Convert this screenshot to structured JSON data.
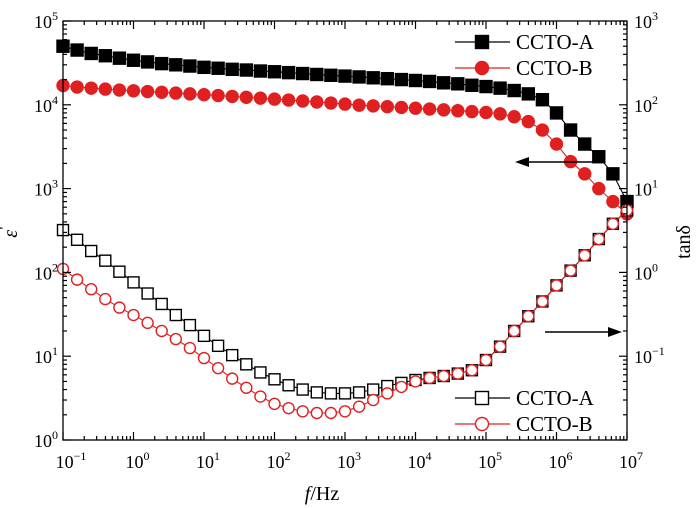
{
  "chart_data": {
    "type": "scatter",
    "x_scale": "log",
    "y_left_scale": "log",
    "y_right_scale": "log",
    "xlim": [
      0.1,
      10000000
    ],
    "ylim_left": [
      1,
      100000
    ],
    "ylim_right": [
      0.01,
      1000
    ],
    "xlabel": {
      "italic": "f",
      "rest": "/Hz"
    },
    "ylabel_left": {
      "main": "ε",
      "prime": "'"
    },
    "ylabel_right": "tanδ",
    "x_ticks": [
      {
        "value": 0.1,
        "base": "10",
        "exp": "−1"
      },
      {
        "value": 1,
        "base": "10",
        "exp": "0"
      },
      {
        "value": 10,
        "base": "10",
        "exp": "1"
      },
      {
        "value": 100,
        "base": "10",
        "exp": "2"
      },
      {
        "value": 1000,
        "base": "10",
        "exp": "3"
      },
      {
        "value": 10000,
        "base": "10",
        "exp": "4"
      },
      {
        "value": 100000,
        "base": "10",
        "exp": "5"
      },
      {
        "value": 1000000,
        "base": "10",
        "exp": "6"
      },
      {
        "value": 10000000,
        "base": "10",
        "exp": "7"
      }
    ],
    "y_left_ticks": [
      {
        "value": 1,
        "base": "10",
        "exp": "0"
      },
      {
        "value": 10,
        "base": "10",
        "exp": "1"
      },
      {
        "value": 100,
        "base": "10",
        "exp": "2"
      },
      {
        "value": 1000,
        "base": "10",
        "exp": "3"
      },
      {
        "value": 10000,
        "base": "10",
        "exp": "4"
      },
      {
        "value": 100000,
        "base": "10",
        "exp": "5"
      }
    ],
    "y_right_ticks": [
      {
        "value": 0.1,
        "base": "10",
        "exp": "−1"
      },
      {
        "value": 1,
        "base": "10",
        "exp": "0"
      },
      {
        "value": 10,
        "base": "10",
        "exp": "1"
      },
      {
        "value": 100,
        "base": "10",
        "exp": "2"
      },
      {
        "value": 1000,
        "base": "10",
        "exp": "3"
      }
    ],
    "legend_top": {
      "placement": "top-right",
      "entries": [
        {
          "label": "CCTO-A",
          "marker": "square",
          "filled": true,
          "color": "#000000"
        },
        {
          "label": "CCTO-B",
          "marker": "circle",
          "filled": true,
          "color": "#e02020"
        }
      ]
    },
    "legend_bottom": {
      "placement": "bottom-right",
      "entries": [
        {
          "label": "CCTO-A",
          "marker": "square",
          "filled": false,
          "color": "#000000"
        },
        {
          "label": "CCTO-B",
          "marker": "circle",
          "filled": false,
          "color": "#e02020"
        }
      ]
    },
    "annotations": [
      {
        "type": "arrow",
        "points_to": "left-axis",
        "at_x": 6000000,
        "at_y_left": 2400
      },
      {
        "type": "arrow",
        "points_to": "right-axis",
        "at_x": 700000,
        "at_y_right": 0.5
      }
    ],
    "series": [
      {
        "name": "CCTO-A",
        "axis": "left",
        "marker": "square",
        "filled": true,
        "color": "#000000",
        "log_x": [
          -1,
          -0.8,
          -0.6,
          -0.4,
          -0.2,
          0,
          0.2,
          0.4,
          0.6,
          0.8,
          1,
          1.2,
          1.4,
          1.6,
          1.8,
          2,
          2.2,
          2.4,
          2.6,
          2.8,
          3,
          3.2,
          3.4,
          3.6,
          3.8,
          4,
          4.2,
          4.4,
          4.6,
          4.8,
          5,
          5.2,
          5.4,
          5.6,
          5.8,
          6,
          6.2,
          6.4,
          6.6,
          6.8,
          7
        ],
        "y": [
          50000,
          45000,
          41000,
          38500,
          36000,
          34000,
          32500,
          31000,
          30000,
          29000,
          28000,
          27300,
          26500,
          26000,
          25300,
          24800,
          24200,
          23600,
          23000,
          22500,
          22000,
          21500,
          21000,
          20500,
          20000,
          19500,
          19000,
          18300,
          17800,
          17100,
          16500,
          15800,
          14800,
          13500,
          11500,
          8000,
          5000,
          3400,
          2400,
          1500,
          700
        ]
      },
      {
        "name": "CCTO-B",
        "axis": "left",
        "marker": "circle",
        "filled": true,
        "color": "#e02020",
        "log_x": [
          -1,
          -0.8,
          -0.6,
          -0.4,
          -0.2,
          0,
          0.2,
          0.4,
          0.6,
          0.8,
          1,
          1.2,
          1.4,
          1.6,
          1.8,
          2,
          2.2,
          2.4,
          2.6,
          2.8,
          3,
          3.2,
          3.4,
          3.6,
          3.8,
          4,
          4.2,
          4.4,
          4.6,
          4.8,
          5,
          5.2,
          5.4,
          5.6,
          5.8,
          6,
          6.2,
          6.4,
          6.6,
          6.8,
          7
        ],
        "y": [
          17000,
          16300,
          15800,
          15400,
          15000,
          14700,
          14400,
          14100,
          13800,
          13500,
          13200,
          12900,
          12600,
          12300,
          12000,
          11700,
          11400,
          11100,
          10800,
          10500,
          10200,
          9900,
          9700,
          9500,
          9300,
          9100,
          8900,
          8700,
          8500,
          8300,
          8100,
          7800,
          7200,
          6300,
          5000,
          3400,
          2100,
          1500,
          1000,
          700,
          500
        ]
      },
      {
        "name": "CCTO-A",
        "axis": "right",
        "marker": "square",
        "filled": false,
        "color": "#000000",
        "log_x": [
          -1,
          -0.8,
          -0.6,
          -0.4,
          -0.2,
          0,
          0.2,
          0.4,
          0.6,
          0.8,
          1,
          1.2,
          1.4,
          1.6,
          1.8,
          2,
          2.2,
          2.4,
          2.6,
          2.8,
          3,
          3.2,
          3.4,
          3.6,
          3.8,
          4,
          4.2,
          4.4,
          4.6,
          4.8,
          5,
          5.2,
          5.4,
          5.6,
          5.8,
          6,
          6.2,
          6.4,
          6.6,
          6.8,
          7
        ],
        "y": [
          3.2,
          2.45,
          1.8,
          1.38,
          1.02,
          0.76,
          0.56,
          0.42,
          0.31,
          0.235,
          0.175,
          0.133,
          0.103,
          0.08,
          0.064,
          0.053,
          0.045,
          0.04,
          0.037,
          0.036,
          0.036,
          0.037,
          0.04,
          0.044,
          0.048,
          0.052,
          0.055,
          0.058,
          0.062,
          0.068,
          0.09,
          0.13,
          0.2,
          0.3,
          0.45,
          0.7,
          1.05,
          1.6,
          2.5,
          3.8,
          5.5
        ]
      },
      {
        "name": "CCTO-B",
        "axis": "right",
        "marker": "circle",
        "filled": false,
        "color": "#e02020",
        "log_x": [
          -1,
          -0.8,
          -0.6,
          -0.4,
          -0.2,
          0,
          0.2,
          0.4,
          0.6,
          0.8,
          1,
          1.2,
          1.4,
          1.6,
          1.8,
          2,
          2.2,
          2.4,
          2.6,
          2.8,
          3,
          3.2,
          3.4,
          3.6,
          3.8,
          4,
          4.2,
          4.4,
          4.6,
          4.8,
          5,
          5.2,
          5.4,
          5.6,
          5.8,
          6,
          6.2,
          6.4,
          6.6,
          6.8,
          7
        ],
        "y": [
          1.1,
          0.82,
          0.63,
          0.48,
          0.38,
          0.31,
          0.25,
          0.2,
          0.16,
          0.125,
          0.095,
          0.072,
          0.054,
          0.042,
          0.033,
          0.027,
          0.024,
          0.022,
          0.021,
          0.021,
          0.022,
          0.025,
          0.03,
          0.036,
          0.043,
          0.05,
          0.055,
          0.058,
          0.062,
          0.068,
          0.09,
          0.13,
          0.2,
          0.3,
          0.45,
          0.7,
          1.05,
          1.6,
          2.5,
          3.8,
          5.5
        ]
      }
    ]
  }
}
